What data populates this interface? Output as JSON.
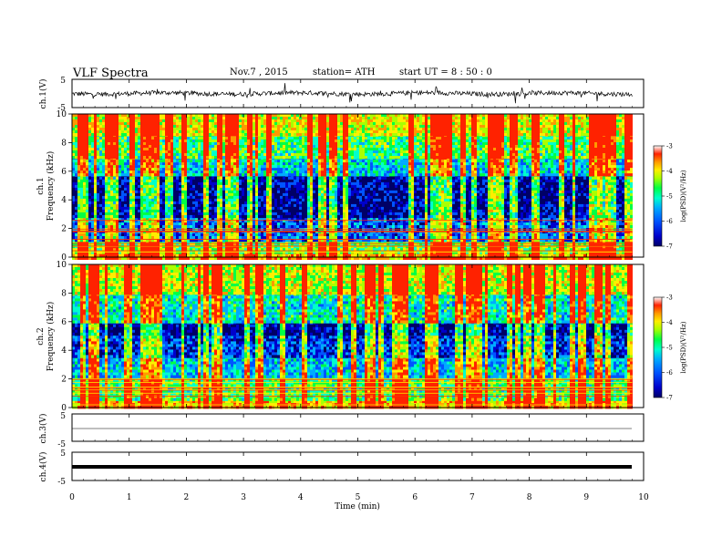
{
  "header": {
    "title": "VLF  Spectra",
    "date": "Nov.7  , 2015",
    "station": "station= ATH",
    "start_ut": "start  UT =   8 : 50 : 0"
  },
  "x_axis": {
    "label": "Time  (min)",
    "ticks": [
      0,
      1,
      2,
      3,
      4,
      5,
      6,
      7,
      8,
      9,
      10
    ],
    "range": [
      0,
      10
    ],
    "data_end": 9.8
  },
  "colors": {
    "scale": [
      "#000066",
      "#0000cc",
      "#0055ff",
      "#00aaff",
      "#00ffcc",
      "#00ff44",
      "#aaff00",
      "#ffee00",
      "#ff9900",
      "#ff2200",
      "#ffffff"
    ]
  },
  "chart_data": [
    {
      "type": "line",
      "id": "ch1-waveform",
      "ylabel": "ch.1(V)",
      "ylim": [
        -5,
        5
      ],
      "yticks": [
        "5",
        "-5"
      ],
      "description_value": "noisy waveform centered near 0 V with amplitude about ±1 V and sharp spikes"
    },
    {
      "type": "heatmap",
      "id": "ch1-spectrogram",
      "ylabel_channel": "ch.1",
      "ylabel": "Frequency  (kHz)",
      "ylim": [
        0,
        10
      ],
      "yticks": [
        "0",
        "2",
        "4",
        "6",
        "8",
        "10"
      ],
      "colorbar": {
        "label": "log(PSD)(V²/Hz)",
        "ticks": [
          "-3",
          "-4",
          "-5",
          "-6",
          "-7"
        ],
        "range": [
          -7,
          -3
        ]
      },
      "bands_khz": [
        {
          "from": 0,
          "to": 0.4,
          "level": -3.8
        },
        {
          "from": 0.4,
          "to": 1.2,
          "level": -4.6
        },
        {
          "from": 1.2,
          "to": 2.8,
          "level": -6.0
        },
        {
          "from": 2.8,
          "to": 5.8,
          "level": -6.6
        },
        {
          "from": 5.8,
          "to": 7.0,
          "level": -5.4
        },
        {
          "from": 7.0,
          "to": 8.6,
          "level": -4.8
        },
        {
          "from": 8.6,
          "to": 10,
          "level": -4.1
        }
      ]
    },
    {
      "type": "heatmap",
      "id": "ch2-spectrogram",
      "ylabel_channel": "ch.2",
      "ylabel": "Frequency  (kHz)",
      "ylim": [
        0,
        10
      ],
      "yticks": [
        "0",
        "2",
        "4",
        "6",
        "8",
        "10"
      ],
      "colorbar": {
        "label": "log(PSD)(V²/Hz)",
        "ticks": [
          "-3",
          "-4",
          "-5",
          "-6",
          "-7"
        ],
        "range": [
          -7,
          -3
        ]
      },
      "bands_khz": [
        {
          "from": 0,
          "to": 0.5,
          "level": -3.9
        },
        {
          "from": 0.5,
          "to": 2.2,
          "level": -4.8
        },
        {
          "from": 2.2,
          "to": 3.6,
          "level": -5.5
        },
        {
          "from": 3.6,
          "to": 5.2,
          "level": -6.2
        },
        {
          "from": 5.2,
          "to": 6.0,
          "level": -6.7
        },
        {
          "from": 6.0,
          "to": 8.0,
          "level": -5.2
        },
        {
          "from": 8.0,
          "to": 10,
          "level": -4.3
        }
      ]
    },
    {
      "type": "line",
      "id": "ch3-waveform",
      "ylabel": "ch.3(V)",
      "ylim": [
        -5,
        5
      ],
      "yticks": [
        "5",
        "-5"
      ],
      "description_value": "flat trace near 0 V"
    },
    {
      "type": "line",
      "id": "ch4-waveform",
      "ylabel": "ch.4(V)",
      "ylim": [
        -5,
        5
      ],
      "yticks": [
        "5",
        "-5"
      ],
      "description_value": "thick flat trace near 0 V"
    }
  ]
}
